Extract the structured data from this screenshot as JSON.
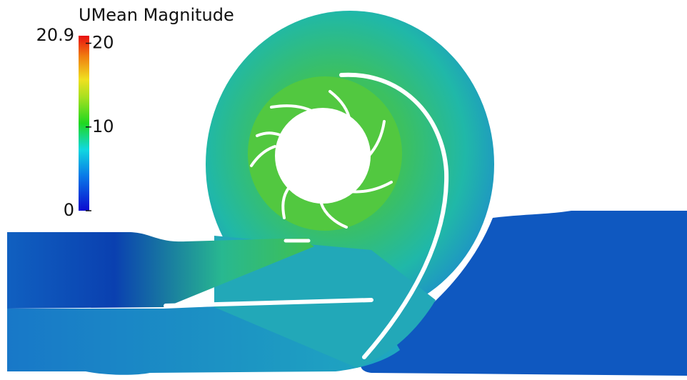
{
  "colorbar": {
    "title": "UMean Magnitude",
    "range": [
      0,
      20.9
    ],
    "max_label": "20.9",
    "ticks": [
      0,
      10,
      20
    ]
  }
}
